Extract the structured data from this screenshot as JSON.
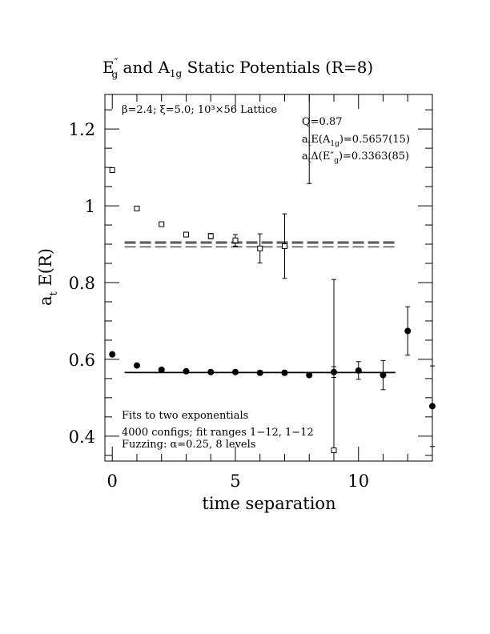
{
  "chart_data": {
    "type": "scatter",
    "title": {
      "E": "E",
      "E_prime": "″",
      "E_sub": "g",
      "and": " and A",
      "A_sub": "1g",
      "rest": " Static Potentials (R=8)"
    },
    "xlabel": "time separation",
    "ylabel": {
      "a": "a",
      "a_sub": "t",
      "rest": " E(R)"
    },
    "xlim": [
      -0.3,
      13
    ],
    "ylim": [
      0.335,
      1.29
    ],
    "x_ticks": [
      {
        "v": 0,
        "label": "0"
      },
      {
        "v": 5,
        "label": "5"
      },
      {
        "v": 10,
        "label": "10"
      }
    ],
    "y_ticks": [
      {
        "v": 0.4,
        "label": "0.4"
      },
      {
        "v": 0.6,
        "label": "0.6"
      },
      {
        "v": 0.8,
        "label": "0.8"
      },
      {
        "v": 1.0,
        "label": "1"
      },
      {
        "v": 1.2,
        "label": "1.2"
      }
    ],
    "annotations": {
      "lattice": "β=2.4; ξ=5.0; 10³×56 Lattice",
      "q": "Q=0.87",
      "a1g": {
        "a": "a",
        "a_sub": "t",
        "mid": "E(A",
        "sub": "1g",
        "end": ")=0.5657(15)"
      },
      "eg": {
        "a": "a",
        "a_sub": "t",
        "mid": "Δ(E″",
        "sub": "g",
        "end": ")=0.3363(85)"
      },
      "fit1": "Fits to two exponentials",
      "fit2": "4000 configs; fit ranges 1−12, 1−12",
      "fit3": "Fuzzing: α=0.25, 8 levels"
    },
    "series": [
      {
        "marker": "open-square",
        "points": [
          {
            "x": 0,
            "y": 1.093,
            "err": 0.004
          },
          {
            "x": 1,
            "y": 0.993,
            "err": 0.005
          },
          {
            "x": 2,
            "y": 0.952,
            "err": 0.005
          },
          {
            "x": 3,
            "y": 0.925,
            "err": 0.006
          },
          {
            "x": 4,
            "y": 0.921,
            "err": 0.007
          },
          {
            "x": 5,
            "y": 0.91,
            "err": 0.015
          },
          {
            "x": 6,
            "y": 0.889,
            "err": 0.038
          },
          {
            "x": 7,
            "y": 0.895,
            "err": 0.084
          },
          {
            "x": 9,
            "y": 0.363,
            "err": 0.445
          }
        ],
        "fit": {
          "y": [
            0.893,
            0.9025,
            0.906
          ],
          "x_range": [
            0.5,
            11.5
          ],
          "dashed": true
        }
      },
      {
        "marker": "filled-circle",
        "points": [
          {
            "x": 0,
            "y": 0.613,
            "err": 0.004
          },
          {
            "x": 1,
            "y": 0.584,
            "err": 0.004
          },
          {
            "x": 2,
            "y": 0.573,
            "err": 0.004
          },
          {
            "x": 3,
            "y": 0.569,
            "err": 0.004
          },
          {
            "x": 4,
            "y": 0.567,
            "err": 0.004
          },
          {
            "x": 5,
            "y": 0.567,
            "err": 0.005
          },
          {
            "x": 6,
            "y": 0.565,
            "err": 0.005
          },
          {
            "x": 7,
            "y": 0.565,
            "err": 0.006
          },
          {
            "x": 8,
            "y": 0.559,
            "err": 0.005
          },
          {
            "x": 9,
            "y": 0.567,
            "err": 0.014
          },
          {
            "x": 10,
            "y": 0.571,
            "err": 0.023
          },
          {
            "x": 11,
            "y": 0.559,
            "err": 0.038
          },
          {
            "x": 12,
            "y": 0.674,
            "err": 0.063
          },
          {
            "x": 13,
            "y": 0.478,
            "err": 0.105
          }
        ],
        "fit": {
          "y": [
            0.5657
          ],
          "x_range": [
            0.5,
            11.5
          ],
          "dashed": false
        }
      }
    ],
    "extra_errorbars": [
      {
        "x": 8.0,
        "ylo": 1.058,
        "yhi": 1.29
      }
    ]
  }
}
